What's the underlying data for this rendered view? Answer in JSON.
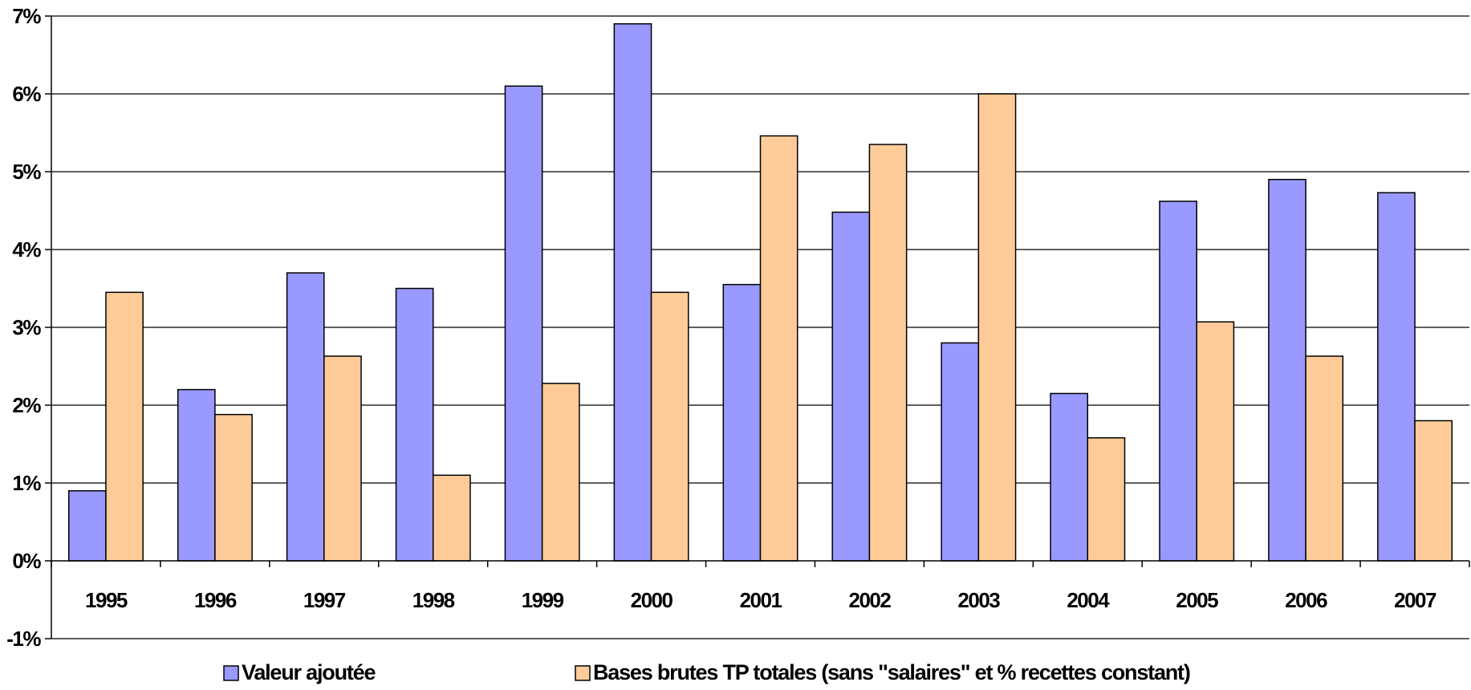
{
  "chart_data": {
    "type": "bar",
    "categories": [
      "1995",
      "1996",
      "1997",
      "1998",
      "1999",
      "2000",
      "2001",
      "2002",
      "2003",
      "2004",
      "2005",
      "2006",
      "2007"
    ],
    "series": [
      {
        "name": "Valeur ajoutée",
        "color": "#9999ff",
        "values": [
          0.9,
          2.2,
          3.7,
          3.5,
          6.1,
          6.9,
          3.55,
          4.48,
          2.8,
          2.15,
          4.62,
          4.9,
          4.73
        ]
      },
      {
        "name": "Bases brutes TP totales (sans \"salaires\" et % recettes constant)",
        "color": "#ffcc99",
        "values": [
          3.45,
          1.88,
          2.63,
          1.1,
          2.28,
          3.45,
          5.46,
          5.35,
          6.0,
          1.58,
          3.07,
          2.63,
          1.8
        ]
      }
    ],
    "ylim": [
      -1,
      7
    ],
    "yticks": [
      "-1%",
      "0%",
      "1%",
      "2%",
      "3%",
      "4%",
      "5%",
      "6%",
      "7%"
    ],
    "grid": true,
    "legend_position": "bottom"
  }
}
